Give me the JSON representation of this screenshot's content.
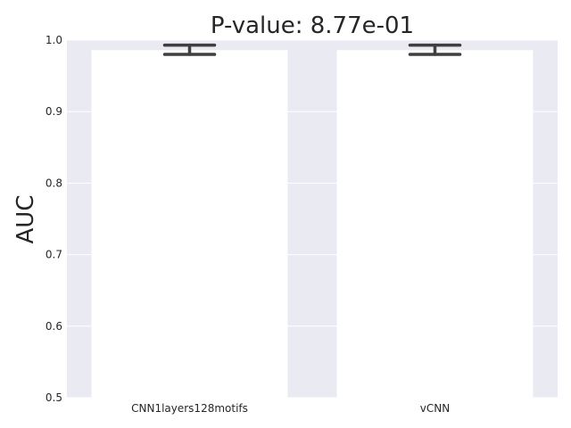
{
  "chart_data": {
    "type": "bar",
    "title": "P-value: 8.77e-01",
    "xlabel": "",
    "ylabel": "AUC",
    "ylim": [
      0.5,
      1.0
    ],
    "yticks": [
      "0.5",
      "0.6",
      "0.7",
      "0.8",
      "0.9",
      "1.0"
    ],
    "categories": [
      "CNN1layers128motifs",
      "vCNN"
    ],
    "values": [
      0.986,
      0.986
    ],
    "error_low": [
      0.98,
      0.98
    ],
    "error_high": [
      0.993,
      0.993
    ],
    "grid": true,
    "colors": {
      "background": "#eaeaf2",
      "grid": "#ffffff",
      "bar": "#ffffff",
      "errorbar": "#3f3f3f",
      "text": "#262626"
    }
  }
}
